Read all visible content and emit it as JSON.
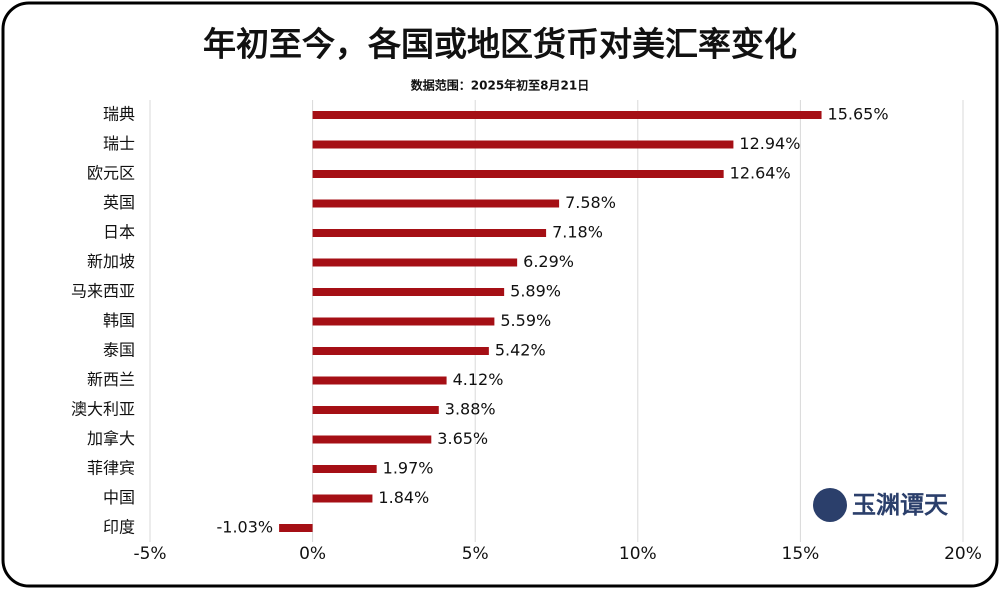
{
  "chart_data": {
    "type": "bar",
    "orientation": "horizontal",
    "title": "年初至今，各国或地区货币对美汇率变化",
    "subtitle": "数据范围：2025年初至8月21日",
    "watermark": "玉渊谭天",
    "categories": [
      "瑞典",
      "瑞士",
      "欧元区",
      "英国",
      "日本",
      "新加坡",
      "马来西亚",
      "韩国",
      "泰国",
      "新西兰",
      "澳大利亚",
      "加拿大",
      "菲律宾",
      "中国",
      "印度"
    ],
    "values": [
      15.65,
      12.94,
      12.64,
      7.58,
      7.18,
      6.29,
      5.89,
      5.59,
      5.42,
      4.12,
      3.88,
      3.65,
      1.97,
      1.84,
      -1.03
    ],
    "value_labels": [
      "15.65%",
      "12.94%",
      "12.64%",
      "7.58%",
      "7.18%",
      "6.29%",
      "5.89%",
      "5.59%",
      "5.42%",
      "4.12%",
      "3.88%",
      "3.65%",
      "1.97%",
      "1.84%",
      "-1.03%"
    ],
    "color": "#a50f15",
    "xlim": [
      -5,
      20
    ],
    "xticks": [
      {
        "value": -5,
        "label": "-5%"
      },
      {
        "value": 0,
        "label": "0%"
      },
      {
        "value": 5,
        "label": "5%"
      },
      {
        "value": 10,
        "label": "10%"
      },
      {
        "value": 15,
        "label": "15%"
      },
      {
        "value": 20,
        "label": "20%"
      }
    ],
    "grid": true
  }
}
